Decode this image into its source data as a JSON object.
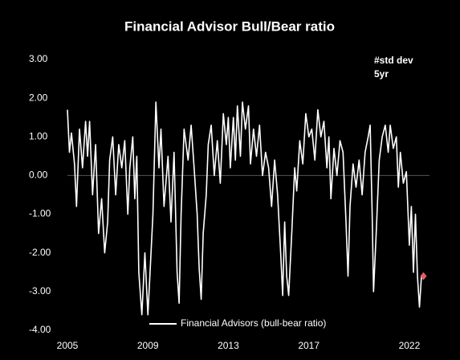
{
  "chart_data": {
    "type": "line",
    "title": "Financial Advisor Bull/Bear ratio",
    "annotation": [
      "#std dev",
      "5yr"
    ],
    "xlim": [
      2005,
      2023
    ],
    "xticks": [
      2005,
      2009,
      2013,
      2017,
      2022
    ],
    "ylim": [
      -4,
      3
    ],
    "yticks": [
      {
        "value": -4,
        "label": "-4.00"
      },
      {
        "value": -3,
        "label": "-3.00"
      },
      {
        "value": -2,
        "label": "-2.00"
      },
      {
        "value": -1,
        "label": "-1.00"
      },
      {
        "value": 0,
        "label": "0.00"
      },
      {
        "value": 1,
        "label": "1.00"
      },
      {
        "value": 2,
        "label": "2.00"
      },
      {
        "value": 3,
        "label": "3.00"
      }
    ],
    "zero_line": true,
    "legend": "bottom",
    "series": [
      {
        "name": "Financial Advisors (bull-bear ratio)",
        "color": "#ffffff",
        "last_marker_color": "#e06060",
        "x": [
          2005.0,
          2005.1,
          2005.2,
          2005.35,
          2005.45,
          2005.6,
          2005.75,
          2005.9,
          2006.0,
          2006.1,
          2006.25,
          2006.4,
          2006.55,
          2006.7,
          2006.85,
          2007.0,
          2007.1,
          2007.25,
          2007.4,
          2007.55,
          2007.7,
          2007.85,
          2008.0,
          2008.1,
          2008.25,
          2008.35,
          2008.45,
          2008.55,
          2008.7,
          2008.85,
          2009.0,
          2009.1,
          2009.25,
          2009.4,
          2009.55,
          2009.65,
          2009.8,
          2010.0,
          2010.15,
          2010.3,
          2010.45,
          2010.55,
          2010.65,
          2010.8,
          2011.0,
          2011.15,
          2011.3,
          2011.45,
          2011.55,
          2011.65,
          2011.75,
          2011.9,
          2012.0,
          2012.15,
          2012.3,
          2012.45,
          2012.6,
          2012.75,
          2012.9,
          2013.0,
          2013.1,
          2013.25,
          2013.35,
          2013.45,
          2013.6,
          2013.7,
          2013.85,
          2014.0,
          2014.1,
          2014.25,
          2014.4,
          2014.55,
          2014.7,
          2014.85,
          2015.0,
          2015.15,
          2015.3,
          2015.45,
          2015.6,
          2015.7,
          2015.8,
          2015.9,
          2016.0,
          2016.15,
          2016.3,
          2016.4,
          2016.55,
          2016.7,
          2016.85,
          2017.0,
          2017.15,
          2017.3,
          2017.45,
          2017.6,
          2017.75,
          2017.9,
          2018.0,
          2018.1,
          2018.25,
          2018.4,
          2018.55,
          2018.7,
          2018.85,
          2018.95,
          2019.05,
          2019.2,
          2019.35,
          2019.5,
          2019.65,
          2019.8,
          2019.95,
          2020.05,
          2020.15,
          2020.22,
          2020.35,
          2020.5,
          2020.65,
          2020.8,
          2020.95,
          2021.05,
          2021.2,
          2021.35,
          2021.45,
          2021.55,
          2021.7,
          2021.85,
          2022.0,
          2022.1,
          2022.2,
          2022.3,
          2022.4,
          2022.5,
          2022.6,
          2022.7
        ],
        "values": [
          1.7,
          0.6,
          1.1,
          0.3,
          -0.8,
          1.2,
          0.2,
          1.4,
          0.5,
          1.4,
          -0.5,
          0.8,
          -1.5,
          -0.6,
          -2.0,
          -1.2,
          0.4,
          1.0,
          -0.5,
          0.8,
          0.2,
          0.9,
          -1.0,
          0.2,
          1.0,
          -0.6,
          0.5,
          -2.5,
          -3.6,
          -2.0,
          -3.6,
          -2.6,
          -1.0,
          1.9,
          0.2,
          1.2,
          -0.8,
          0.5,
          -1.2,
          0.6,
          -2.5,
          -3.3,
          -1.0,
          1.2,
          0.4,
          1.3,
          0.2,
          -1.0,
          -2.4,
          -3.2,
          -1.5,
          -0.5,
          0.8,
          1.3,
          0.0,
          0.9,
          -0.2,
          1.6,
          0.8,
          1.5,
          0.2,
          1.5,
          0.4,
          1.8,
          0.5,
          1.9,
          1.2,
          1.8,
          0.3,
          1.2,
          0.5,
          1.3,
          0.0,
          0.6,
          0.2,
          -0.8,
          0.4,
          -0.5,
          -2.0,
          -3.1,
          -1.2,
          -2.6,
          -3.1,
          -1.5,
          0.2,
          -0.4,
          0.9,
          0.3,
          1.6,
          1.0,
          1.2,
          0.4,
          1.7,
          1.0,
          1.4,
          0.2,
          1.0,
          -0.6,
          0.7,
          0.0,
          0.9,
          0.6,
          -1.2,
          -2.6,
          -0.8,
          0.3,
          -0.3,
          0.4,
          -0.5,
          0.6,
          1.0,
          1.3,
          -1.0,
          -3.0,
          -1.5,
          0.4,
          1.0,
          1.3,
          0.6,
          1.3,
          0.7,
          1.0,
          -0.3,
          0.6,
          -0.2,
          0.1,
          -1.8,
          -0.8,
          -2.5,
          -1.0,
          -2.6,
          -3.4,
          -2.6,
          -2.6
        ]
      }
    ]
  }
}
